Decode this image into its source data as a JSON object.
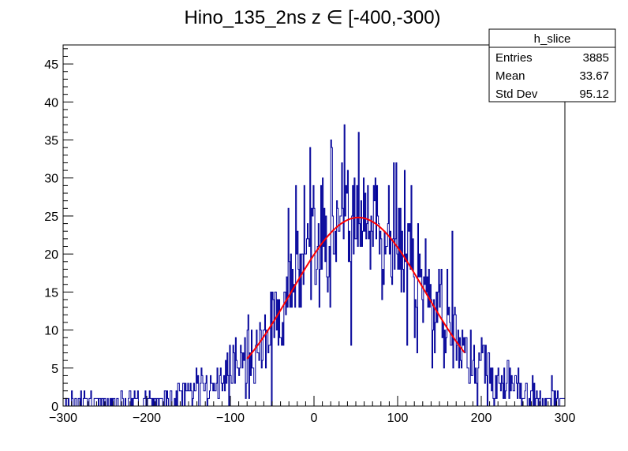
{
  "chart_data": {
    "type": "histogram",
    "title": "Hino_135_2ns z  ∈ [-400,-300)",
    "xlabel": "",
    "ylabel": "",
    "xlim": [
      -300,
      300
    ],
    "ylim": [
      0,
      47.5
    ],
    "x_ticks": [
      -300,
      -200,
      -100,
      0,
      100,
      200,
      300
    ],
    "y_ticks": [
      0,
      5,
      10,
      15,
      20,
      25,
      30,
      35,
      40,
      45
    ],
    "grid": false,
    "histogram": {
      "name": "h_slice",
      "color": "#000099",
      "bin_width": 1,
      "entries": 3885,
      "mean": 33.67,
      "std_dev": 95.12
    },
    "fit": {
      "type": "gaussian",
      "color": "#ff0000",
      "amplitude": 24.8,
      "mean": 53,
      "sigma": 80,
      "x_range": [
        -80,
        180
      ]
    },
    "stats_box": {
      "title": "h_slice",
      "position": "top-right",
      "rows": [
        {
          "label": "Entries",
          "value": "3885"
        },
        {
          "label": "Mean",
          "value": "33.67"
        },
        {
          "label": "Std Dev",
          "value": "95.12"
        }
      ]
    }
  },
  "colors": {
    "histogram": "#000099",
    "fit": "#ff0000",
    "axes": "#000000",
    "background": "#ffffff"
  }
}
